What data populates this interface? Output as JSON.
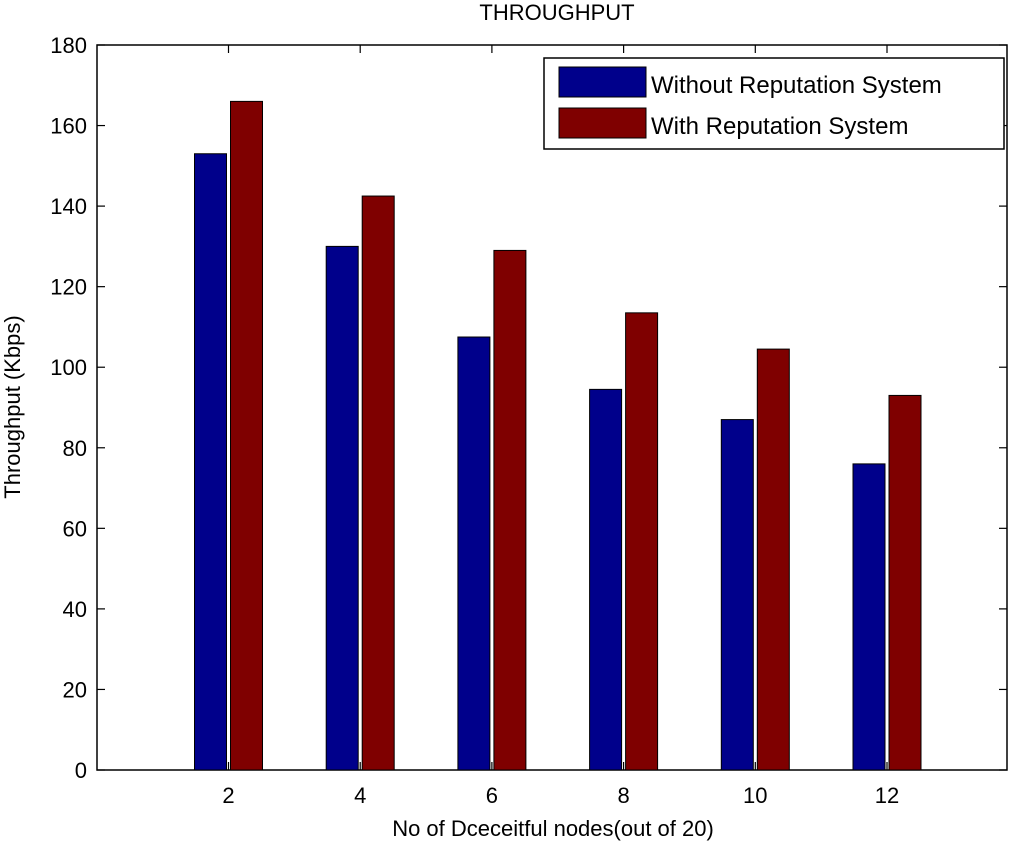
{
  "chart_data": {
    "type": "bar",
    "title": "THROUGHPUT",
    "xlabel": "No of Dceceitful nodes(out of 20)",
    "ylabel": "Throughput (Kbps)",
    "categories": [
      "2",
      "4",
      "6",
      "8",
      "10",
      "12"
    ],
    "ylim": [
      0,
      180
    ],
    "yticks": [
      "0",
      "20",
      "40",
      "60",
      "80",
      "100",
      "120",
      "140",
      "160",
      "180"
    ],
    "grid": false,
    "legend_position": "top-right",
    "series": [
      {
        "name": "Without Reputation System",
        "color": "#00008B",
        "values": [
          153,
          130,
          107.5,
          94.5,
          87,
          76
        ]
      },
      {
        "name": "With Reputation System",
        "color": "#7F0000",
        "values": [
          166,
          142.5,
          129,
          113.5,
          104.5,
          93
        ]
      }
    ]
  }
}
